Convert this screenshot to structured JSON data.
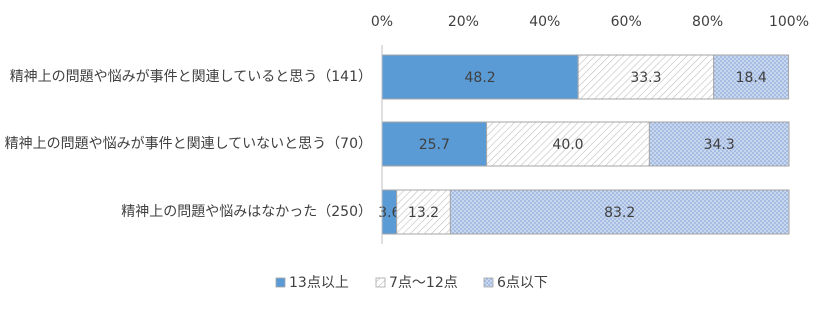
{
  "chart_data": {
    "type": "stacked-bar-horizontal",
    "categories": [
      "精神上の問題や悩みが事件と関連していると思う（141）",
      "精神上の問題や悩みが事件と関連していないと思う（70）",
      "精神上の問題や悩みはなかった（250）"
    ],
    "series": [
      {
        "name": "13点以上",
        "color": "#5b9bd5",
        "pattern": "solid",
        "values": [
          48.2,
          25.7,
          3.6
        ]
      },
      {
        "name": "7点～12点",
        "color": "#bfbfbf",
        "pattern": "hatch",
        "values": [
          33.3,
          40.0,
          13.2
        ],
        "value_labels": [
          "33.3",
          "40.0",
          "13.2"
        ]
      },
      {
        "name": "6点以下",
        "color": "#8eaadb",
        "pattern": "dots",
        "values": [
          18.4,
          34.3,
          83.2
        ]
      }
    ],
    "xlim": [
      0,
      100
    ],
    "xticks": [
      {
        "value": 0,
        "label": "0%"
      },
      {
        "value": 20,
        "label": "20%"
      },
      {
        "value": 40,
        "label": "40%"
      },
      {
        "value": 60,
        "label": "60%"
      },
      {
        "value": 80,
        "label": "80%"
      },
      {
        "value": 100,
        "label": "100%"
      }
    ],
    "grid": false,
    "legend": "bottom"
  }
}
